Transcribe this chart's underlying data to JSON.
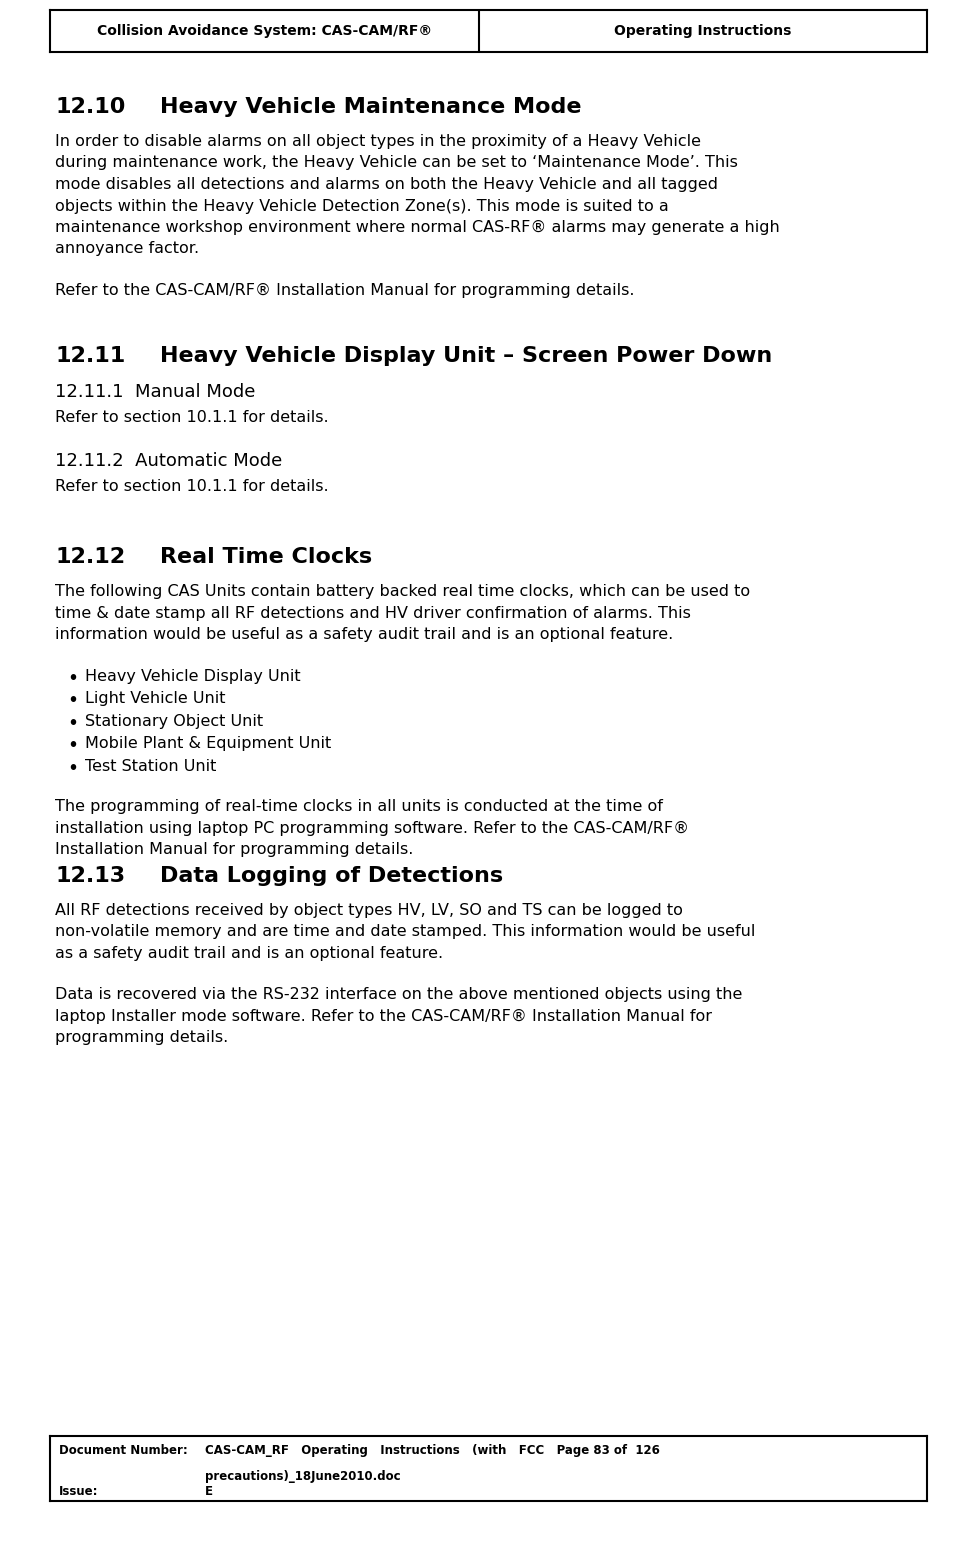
{
  "page_width": 9.57,
  "page_height": 15.46,
  "dpi": 100,
  "bg_color": "#ffffff",
  "header": {
    "left": "Collision Avoidance System: CAS-CAM/RF®",
    "right": "Operating Instructions"
  },
  "footer": {
    "doc_label": "Document Number:",
    "doc_value_line1": "CAS-CAM_RF   Operating   Instructions   (with   FCC   Page 83 of  126",
    "doc_value_line2": "precautions)_18June2010.doc",
    "issue_label": "Issue:",
    "issue_value": "E"
  },
  "sections": [
    {
      "type": "heading1",
      "number": "12.10",
      "title": "Heavy Vehicle Maintenance Mode"
    },
    {
      "type": "body_justified",
      "text": "In order to disable alarms on all object types in the proximity of a Heavy Vehicle during maintenance work, the Heavy Vehicle can be set to ‘Maintenance Mode’. This mode disables all detections and alarms on both the Heavy Vehicle and all tagged objects within the Heavy Vehicle Detection Zone(s). This mode is suited to a maintenance workshop environment where normal CAS-RF® alarms may generate a high annoyance factor."
    },
    {
      "type": "spacer",
      "size": 0.18
    },
    {
      "type": "body",
      "text": "Refer to the CAS-CAM/RF® Installation Manual for programming details."
    },
    {
      "type": "spacer",
      "size": 0.4
    },
    {
      "type": "heading1",
      "number": "12.11",
      "title": "Heavy Vehicle Display Unit – Screen Power Down"
    },
    {
      "type": "heading2",
      "text": "12.11.1  Manual Mode"
    },
    {
      "type": "body",
      "text": "Refer to section 10.1.1 for details."
    },
    {
      "type": "spacer",
      "size": 0.18
    },
    {
      "type": "heading2",
      "text": "12.11.2  Automatic Mode"
    },
    {
      "type": "body",
      "text": "Refer to section 10.1.1 for details."
    },
    {
      "type": "spacer",
      "size": 0.45
    },
    {
      "type": "heading1",
      "number": "12.12",
      "title": "Real Time Clocks"
    },
    {
      "type": "body_justified",
      "text": "The following CAS Units contain battery backed real time clocks, which can be used to time & date stamp all RF detections and HV driver confirmation of alarms. This information would be useful as a safety audit trail and is an optional feature."
    },
    {
      "type": "spacer",
      "size": 0.18
    },
    {
      "type": "bullet",
      "text": "Heavy Vehicle Display Unit"
    },
    {
      "type": "bullet",
      "text": "Light Vehicle Unit"
    },
    {
      "type": "bullet",
      "text": "Stationary Object Unit"
    },
    {
      "type": "bullet",
      "text": "Mobile Plant & Equipment Unit"
    },
    {
      "type": "bullet",
      "text": "Test Station Unit"
    },
    {
      "type": "spacer",
      "size": 0.18
    },
    {
      "type": "body_justified",
      "text": "The programming of real-time clocks in all units is conducted at the time of installation using laptop PC programming software. Refer to the CAS-CAM/RF® Installation Manual for programming details."
    },
    {
      "type": "heading1",
      "number": "12.13",
      "title": "Data Logging of Detections"
    },
    {
      "type": "body_justified",
      "text": "All RF detections received by object types HV, LV, SO and TS can be logged to non-volatile memory and are time and date stamped. This information would be useful as a safety audit trail and is an optional feature."
    },
    {
      "type": "spacer",
      "size": 0.18
    },
    {
      "type": "body_justified",
      "text": "Data is recovered via the RS-232 interface on the above mentioned objects using the laptop Installer mode software. Refer to the CAS-CAM/RF® Installation Manual for programming details."
    }
  ]
}
